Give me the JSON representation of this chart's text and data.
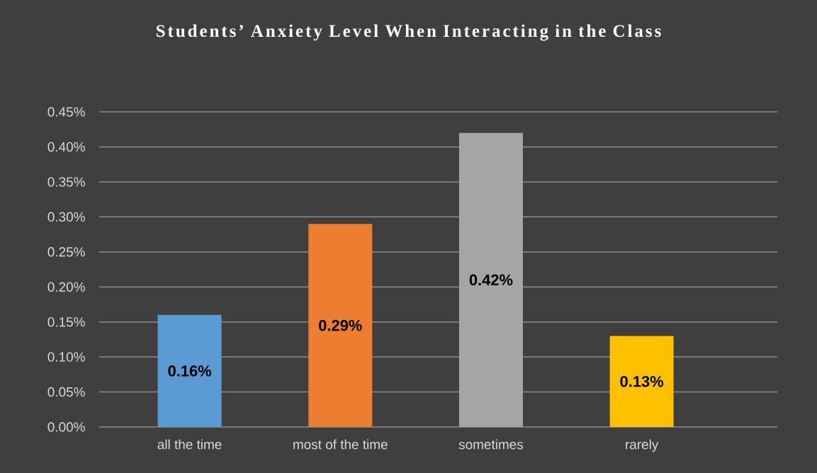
{
  "chart_data": {
    "type": "bar",
    "title": "Students’ Anxiety Level When Interacting in the Class",
    "categories": [
      "all the time",
      "most of the time",
      "sometimes",
      "rarely"
    ],
    "values": [
      0.16,
      0.29,
      0.42,
      0.13
    ],
    "colors": [
      "#5b9bd5",
      "#ed7d31",
      "#a5a5a5",
      "#ffc000"
    ],
    "value_labels": [
      "0.16%",
      "0.29%",
      "0.42%",
      "0.13%"
    ],
    "ylim": [
      0,
      0.45
    ],
    "yticks": [
      {
        "value": 0,
        "label": "0.00%"
      },
      {
        "value": 0.05,
        "label": "0.05%"
      },
      {
        "value": 0.1,
        "label": "0.10%"
      },
      {
        "value": 0.15,
        "label": "0.15%"
      },
      {
        "value": 0.2,
        "label": "0.20%"
      },
      {
        "value": 0.25,
        "label": "0.25%"
      },
      {
        "value": 0.3,
        "label": "0.30%"
      },
      {
        "value": 0.35,
        "label": "0.35%"
      },
      {
        "value": 0.4,
        "label": "0.40%"
      },
      {
        "value": 0.45,
        "label": "0.45%"
      }
    ],
    "grid": "y"
  }
}
